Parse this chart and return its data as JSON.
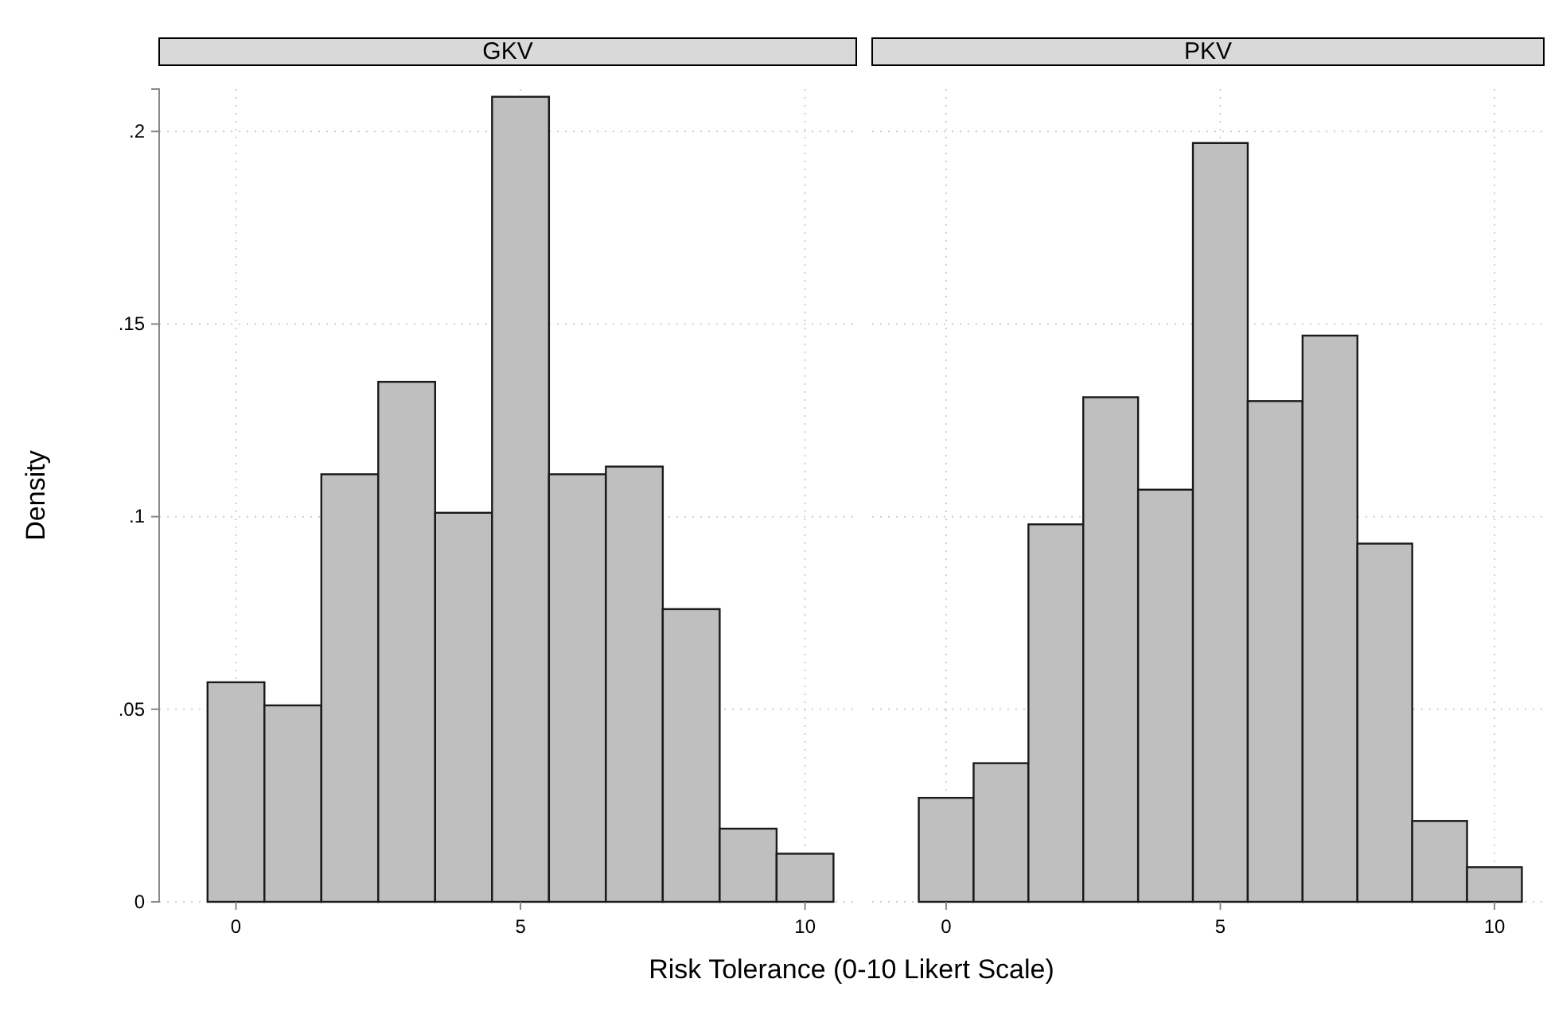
{
  "chart_data": [
    {
      "type": "histogram",
      "title": "GKV",
      "ylabel": "Density",
      "xlabel": "Risk Tolerance (0-10 Likert Scale)",
      "bins": [
        -0.5,
        0.5,
        1.5,
        2.5,
        3.5,
        4.5,
        5.5,
        6.5,
        7.5,
        8.5,
        9.5,
        10.5
      ],
      "values": [
        0.057,
        0.051,
        0.111,
        0.135,
        0.101,
        0.209,
        0.111,
        0.113,
        0.076,
        0.019,
        0.0125
      ],
      "color": "#bfbfbf",
      "xlim": [
        -1.35,
        10.9
      ],
      "xticks": [
        0,
        5,
        10
      ],
      "ylim": [
        0,
        0.211
      ],
      "yticks": [
        0,
        {
          "value": 0.05,
          "label": ".05"
        },
        {
          "value": 0.1,
          "label": ".1"
        },
        {
          "value": 0.15,
          "label": ".15"
        },
        {
          "value": 0.2,
          "label": ".2"
        }
      ],
      "grid": true
    },
    {
      "type": "histogram",
      "title": "PKV",
      "bins": [
        -0.5,
        0.5,
        1.5,
        2.5,
        3.5,
        4.5,
        5.5,
        6.5,
        7.5,
        8.5,
        9.5,
        10.5
      ],
      "values": [
        0.027,
        0.036,
        0.098,
        0.131,
        0.107,
        0.197,
        0.13,
        0.147,
        0.093,
        0.021,
        0.009
      ],
      "color": "#bfbfbf",
      "xlim": [
        -1.35,
        10.9
      ],
      "xticks": [
        0,
        5,
        10
      ],
      "ylim": [
        0,
        0.211
      ],
      "yticks": [
        0,
        0.05,
        0.1,
        0.15,
        0.2
      ],
      "grid": true,
      "tick_labels": "x"
    }
  ]
}
